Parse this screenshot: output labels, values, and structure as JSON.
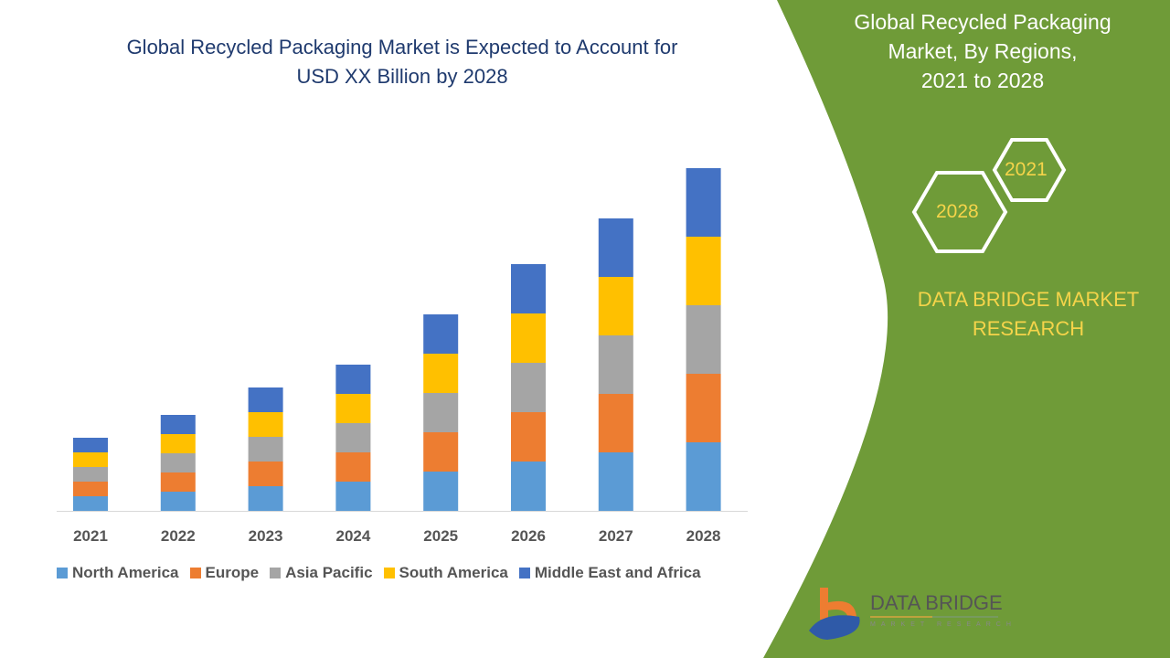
{
  "header": {
    "title_line1": "Global Recycled Packaging Market is Expected to Account for",
    "title_line2": "USD XX Billion by 2028"
  },
  "side_panel": {
    "title_line1": "Global Recycled Packaging",
    "title_line2": "Market, By Regions,",
    "title_line3": "2021 to 2028",
    "hex_start": "2021",
    "hex_end": "2028",
    "brand_line1": "DATA BRIDGE MARKET",
    "brand_line2": "RESEARCH",
    "panel_color": "#6f9b38",
    "accent_color": "#f5d44a"
  },
  "logo": {
    "name": "DATA BRIDGE",
    "tagline": "MARKET RESEARCH"
  },
  "chart_data": {
    "type": "bar",
    "stacked": true,
    "title": "Global Recycled Packaging Market is Expected to Account for USD XX Billion by 2028",
    "xlabel": "",
    "ylabel": "",
    "grid": false,
    "legend_position": "bottom",
    "categories": [
      "2021",
      "2022",
      "2023",
      "2024",
      "2025",
      "2026",
      "2027",
      "2028"
    ],
    "ylim": [
      0,
      37.5
    ],
    "series": [
      {
        "name": "North America",
        "color": "#5b9bd5",
        "values": [
          1.6,
          2.1,
          2.7,
          3.2,
          4.3,
          5.4,
          6.4,
          7.5
        ]
      },
      {
        "name": "Europe",
        "color": "#ed7d31",
        "values": [
          1.6,
          2.1,
          2.7,
          3.2,
          4.3,
          5.4,
          6.4,
          7.5
        ]
      },
      {
        "name": "Asia Pacific",
        "color": "#a5a5a5",
        "values": [
          1.6,
          2.1,
          2.7,
          3.2,
          4.3,
          5.4,
          6.4,
          7.5
        ]
      },
      {
        "name": "South America",
        "color": "#ffc000",
        "values": [
          1.6,
          2.1,
          2.7,
          3.2,
          4.3,
          5.4,
          6.4,
          7.5
        ]
      },
      {
        "name": "Middle East and Africa",
        "color": "#4472c4",
        "values": [
          1.6,
          2.1,
          2.7,
          3.2,
          4.3,
          5.4,
          6.4,
          7.5
        ]
      }
    ]
  }
}
